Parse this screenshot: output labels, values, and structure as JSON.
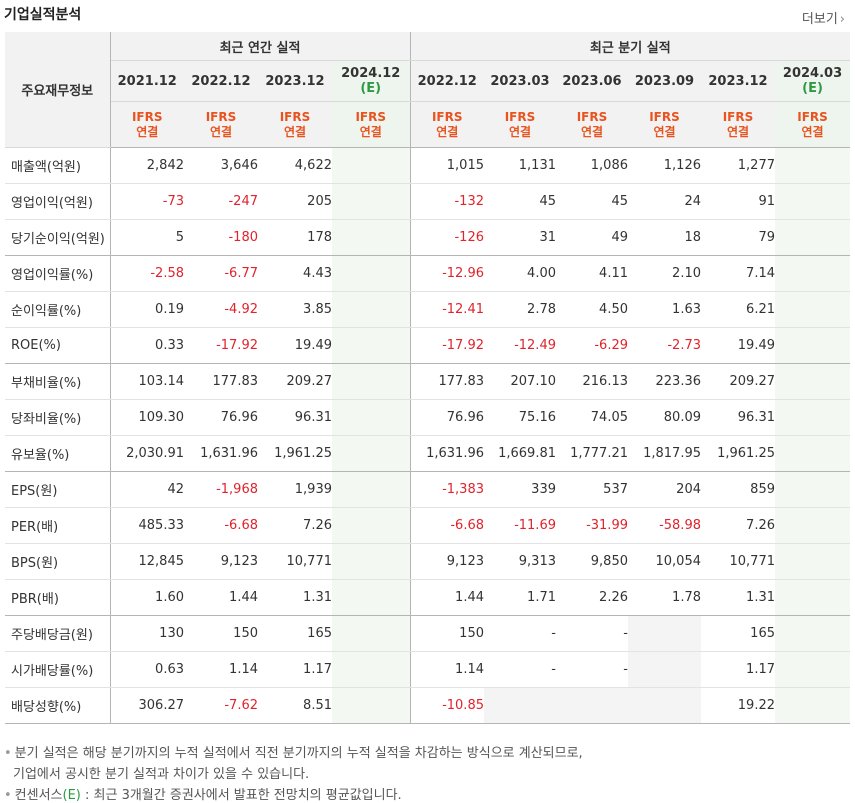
{
  "header": {
    "title": "기업실적분석",
    "more_label": "더보기",
    "more_icon": "chevron-right-icon"
  },
  "table": {
    "corner_label": "주요재무정보",
    "group_annual": "최근 연간 실적",
    "group_quarter": "최근 분기 실적",
    "annual_periods": [
      "2021.12",
      "2022.12",
      "2023.12",
      "2024.12"
    ],
    "quarter_periods": [
      "2022.12",
      "2023.03",
      "2023.06",
      "2023.09",
      "2023.12",
      "2024.03"
    ],
    "estimate_mark": "(E)",
    "ifrs_top": "IFRS",
    "ifrs_bottom": "연결",
    "rows": [
      {
        "label": "매출액(억원)",
        "cells": [
          "2,842",
          "3,646",
          "4,622",
          "",
          "1,015",
          "1,131",
          "1,086",
          "1,126",
          "1,277",
          ""
        ]
      },
      {
        "label": "영업이익(억원)",
        "cells": [
          "-73",
          "-247",
          "205",
          "",
          "-132",
          "45",
          "45",
          "24",
          "91",
          ""
        ]
      },
      {
        "label": "당기순이익(억원)",
        "cells": [
          "5",
          "-180",
          "178",
          "",
          "-126",
          "31",
          "49",
          "18",
          "79",
          ""
        ]
      },
      {
        "label": "영업이익률(%)",
        "cells": [
          "-2.58",
          "-6.77",
          "4.43",
          "",
          "-12.96",
          "4.00",
          "4.11",
          "2.10",
          "7.14",
          ""
        ]
      },
      {
        "label": "순이익률(%)",
        "cells": [
          "0.19",
          "-4.92",
          "3.85",
          "",
          "-12.41",
          "2.78",
          "4.50",
          "1.63",
          "6.21",
          ""
        ]
      },
      {
        "label": "ROE(%)",
        "cells": [
          "0.33",
          "-17.92",
          "19.49",
          "",
          "-17.92",
          "-12.49",
          "-6.29",
          "-2.73",
          "19.49",
          ""
        ]
      },
      {
        "label": "부채비율(%)",
        "cells": [
          "103.14",
          "177.83",
          "209.27",
          "",
          "177.83",
          "207.10",
          "216.13",
          "223.36",
          "209.27",
          ""
        ]
      },
      {
        "label": "당좌비율(%)",
        "cells": [
          "109.30",
          "76.96",
          "96.31",
          "",
          "76.96",
          "75.16",
          "74.05",
          "80.09",
          "96.31",
          ""
        ]
      },
      {
        "label": "유보율(%)",
        "cells": [
          "2,030.91",
          "1,631.96",
          "1,961.25",
          "",
          "1,631.96",
          "1,669.81",
          "1,777.21",
          "1,817.95",
          "1,961.25",
          ""
        ]
      },
      {
        "label": "EPS(원)",
        "cells": [
          "42",
          "-1,968",
          "1,939",
          "",
          "-1,383",
          "339",
          "537",
          "204",
          "859",
          ""
        ]
      },
      {
        "label": "PER(배)",
        "cells": [
          "485.33",
          "-6.68",
          "7.26",
          "",
          "-6.68",
          "-11.69",
          "-31.99",
          "-58.98",
          "7.26",
          ""
        ]
      },
      {
        "label": "BPS(원)",
        "cells": [
          "12,845",
          "9,123",
          "10,771",
          "",
          "9,123",
          "9,313",
          "9,850",
          "10,054",
          "10,771",
          ""
        ]
      },
      {
        "label": "PBR(배)",
        "cells": [
          "1.60",
          "1.44",
          "1.31",
          "",
          "1.44",
          "1.71",
          "2.26",
          "1.78",
          "1.31",
          ""
        ]
      },
      {
        "label": "주당배당금(원)",
        "cells": [
          "130",
          "150",
          "165",
          "",
          "150",
          "-",
          "-",
          "",
          "165",
          ""
        ]
      },
      {
        "label": "시가배당률(%)",
        "cells": [
          "0.63",
          "1.14",
          "1.17",
          "",
          "1.14",
          "-",
          "-",
          "",
          "1.17",
          ""
        ]
      },
      {
        "label": "배당성향(%)",
        "cells": [
          "306.27",
          "-7.62",
          "8.51",
          "",
          "-10.85",
          "",
          "",
          "",
          "19.22",
          ""
        ]
      }
    ]
  },
  "notes": {
    "line1": "분기 실적은 해당 분기까지의 누적 실적에서 직전 분기까지의 누적 실적을 차감하는 방식으로 계산되므로,",
    "line2": "기업에서 공시한 분기 실적과 차이가 있을 수 있습니다.",
    "line3_prefix": "컨센서스",
    "line3_mark": "(E)",
    "line3_suffix": " : 최근 3개월간 증권사에서 발표한 전망치의 평균값입니다."
  }
}
